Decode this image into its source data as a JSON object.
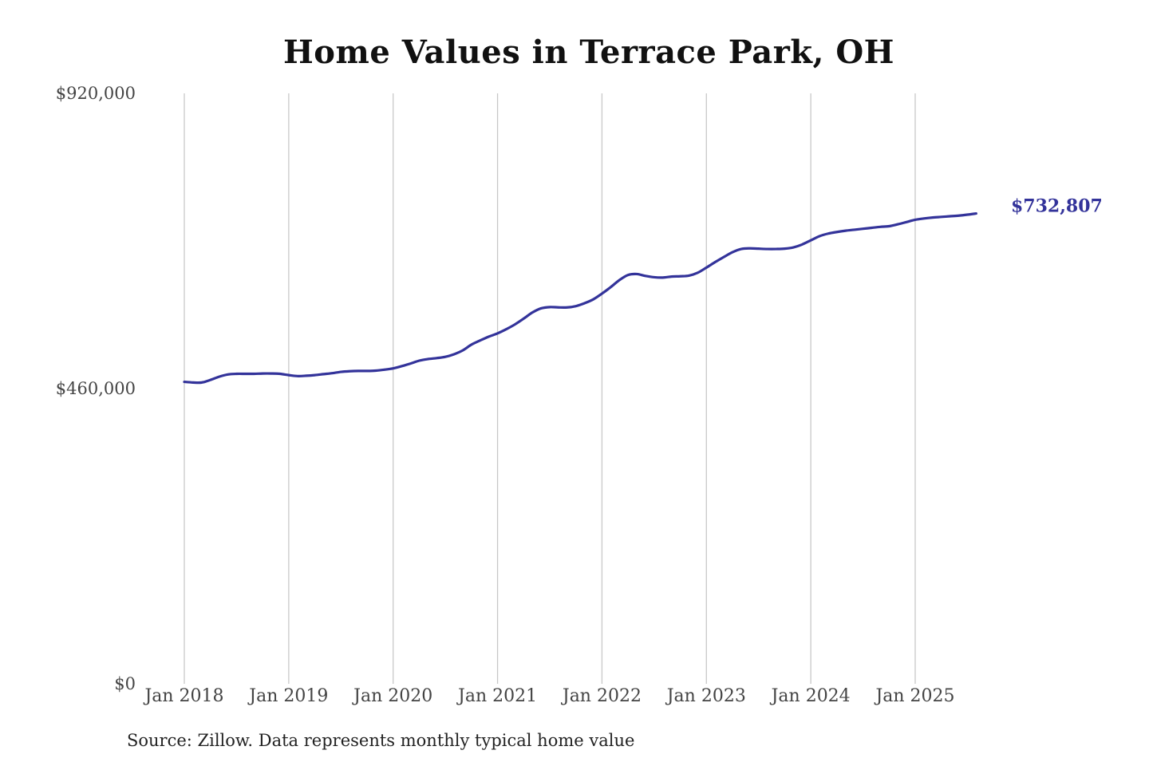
{
  "colors": {
    "line": "#33339a",
    "end_label": "#33339a",
    "gridline": "#c8c8c8"
  },
  "chart_data": {
    "type": "line",
    "title": "Home Values in Terrace Park, OH",
    "xlabel": "",
    "ylabel": "",
    "ylim": [
      0,
      920000
    ],
    "yticks": [
      {
        "value": 0,
        "label": "$0"
      },
      {
        "value": 460000,
        "label": "$460,000"
      },
      {
        "value": 920000,
        "label": "$920,000"
      }
    ],
    "xlim": [
      "2018-01",
      "2025-09"
    ],
    "xticks": [
      {
        "value": "2018-01",
        "label": "Jan 2018"
      },
      {
        "value": "2019-01",
        "label": "Jan 2019"
      },
      {
        "value": "2020-01",
        "label": "Jan 2020"
      },
      {
        "value": "2021-01",
        "label": "Jan 2021"
      },
      {
        "value": "2022-01",
        "label": "Jan 2022"
      },
      {
        "value": "2023-01",
        "label": "Jan 2023"
      },
      {
        "value": "2024-01",
        "label": "Jan 2024"
      },
      {
        "value": "2025-01",
        "label": "Jan 2025"
      }
    ],
    "grid": "vertical",
    "end_label": "$732,807",
    "series": [
      {
        "values": [
          [
            "2018-01",
            470500
          ],
          [
            "2018-02",
            469500
          ],
          [
            "2018-03",
            469500
          ],
          [
            "2018-04",
            473500
          ],
          [
            "2018-05",
            478500
          ],
          [
            "2018-06",
            482000
          ],
          [
            "2018-07",
            483000
          ],
          [
            "2018-08",
            483000
          ],
          [
            "2018-09",
            483000
          ],
          [
            "2018-10",
            483500
          ],
          [
            "2018-11",
            483500
          ],
          [
            "2018-12",
            483000
          ],
          [
            "2019-01",
            481000
          ],
          [
            "2019-02",
            479500
          ],
          [
            "2019-03",
            480000
          ],
          [
            "2019-04",
            481000
          ],
          [
            "2019-05",
            482500
          ],
          [
            "2019-06",
            484000
          ],
          [
            "2019-07",
            486000
          ],
          [
            "2019-08",
            487000
          ],
          [
            "2019-09",
            487500
          ],
          [
            "2019-10",
            487500
          ],
          [
            "2019-11",
            488000
          ],
          [
            "2019-12",
            489500
          ],
          [
            "2020-01",
            491500
          ],
          [
            "2020-02",
            495000
          ],
          [
            "2020-03",
            499000
          ],
          [
            "2020-04",
            503500
          ],
          [
            "2020-05",
            506000
          ],
          [
            "2020-06",
            507500
          ],
          [
            "2020-07",
            509500
          ],
          [
            "2020-08",
            513500
          ],
          [
            "2020-09",
            519500
          ],
          [
            "2020-10",
            528500
          ],
          [
            "2020-11",
            535000
          ],
          [
            "2020-12",
            541000
          ],
          [
            "2021-01",
            546000
          ],
          [
            "2021-02",
            552500
          ],
          [
            "2021-03",
            560000
          ],
          [
            "2021-04",
            569000
          ],
          [
            "2021-05",
            578500
          ],
          [
            "2021-06",
            585000
          ],
          [
            "2021-07",
            587000
          ],
          [
            "2021-08",
            586500
          ],
          [
            "2021-09",
            586500
          ],
          [
            "2021-10",
            588500
          ],
          [
            "2021-11",
            593000
          ],
          [
            "2021-12",
            599000
          ],
          [
            "2022-01",
            608000
          ],
          [
            "2022-02",
            618000
          ],
          [
            "2022-03",
            629000
          ],
          [
            "2022-04",
            637000
          ],
          [
            "2022-05",
            638500
          ],
          [
            "2022-06",
            635500
          ],
          [
            "2022-07",
            633500
          ],
          [
            "2022-08",
            633000
          ],
          [
            "2022-09",
            634500
          ],
          [
            "2022-10",
            635000
          ],
          [
            "2022-11",
            636000
          ],
          [
            "2022-12",
            640500
          ],
          [
            "2023-01",
            648500
          ],
          [
            "2023-02",
            657000
          ],
          [
            "2023-03",
            665000
          ],
          [
            "2023-04",
            672500
          ],
          [
            "2023-05",
            677500
          ],
          [
            "2023-06",
            678500
          ],
          [
            "2023-07",
            678000
          ],
          [
            "2023-08",
            677500
          ],
          [
            "2023-09",
            677500
          ],
          [
            "2023-10",
            678000
          ],
          [
            "2023-11",
            680000
          ],
          [
            "2023-12",
            684500
          ],
          [
            "2024-01",
            691000
          ],
          [
            "2024-02",
            697500
          ],
          [
            "2024-03",
            701500
          ],
          [
            "2024-04",
            704000
          ],
          [
            "2024-05",
            706000
          ],
          [
            "2024-06",
            707500
          ],
          [
            "2024-07",
            709000
          ],
          [
            "2024-08",
            710500
          ],
          [
            "2024-09",
            712000
          ],
          [
            "2024-10",
            713000
          ],
          [
            "2024-11",
            716000
          ],
          [
            "2024-12",
            719500
          ],
          [
            "2025-01",
            723000
          ],
          [
            "2025-02",
            725000
          ],
          [
            "2025-03",
            726500
          ],
          [
            "2025-04",
            727500
          ],
          [
            "2025-05",
            728500
          ],
          [
            "2025-06",
            729500
          ],
          [
            "2025-07",
            731000
          ],
          [
            "2025-08",
            732807
          ]
        ]
      }
    ]
  },
  "source_note": "Source: Zillow. Data represents monthly typical home value"
}
